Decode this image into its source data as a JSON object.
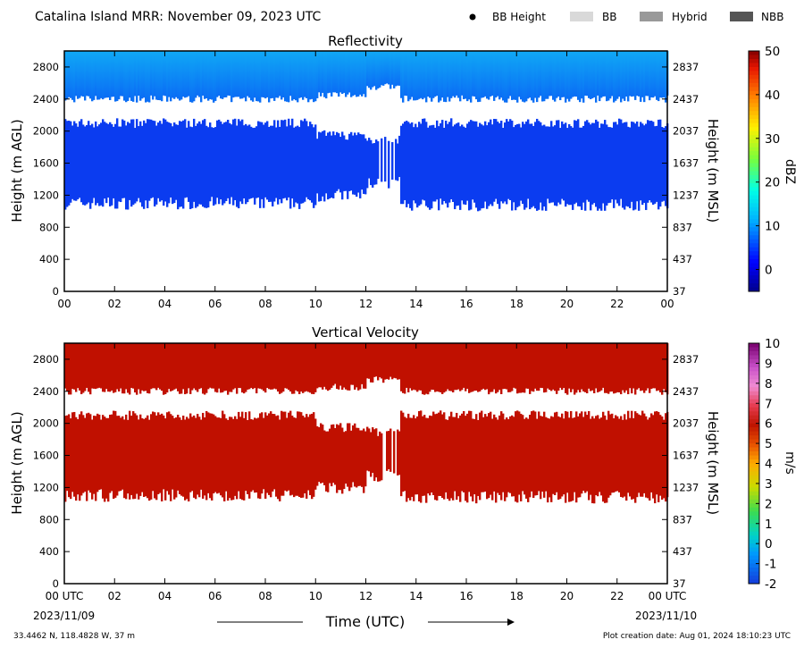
{
  "header": {
    "title": "Catalina Island MRR:  November 09, 2023 UTC",
    "legend": [
      {
        "label": "BB Height",
        "kind": "dot",
        "color": "#000000"
      },
      {
        "label": "BB",
        "kind": "box",
        "color": "#d9d9d9"
      },
      {
        "label": "Hybrid",
        "kind": "box",
        "color": "#999999"
      },
      {
        "label": "NBB",
        "kind": "box",
        "color": "#555555"
      }
    ]
  },
  "footer": {
    "coords": "33.4462 N, 118.4828 W, 37 m",
    "creation": "Plot creation date: Aug 01, 2024 18:10:23 UTC",
    "start_date": "2023/11/09",
    "end_date": "2023/11/10"
  },
  "colors": {
    "reflectivity_blue": "#0b3cf0",
    "reflectivity_top": "#10a8f5",
    "velocity_red": "#c01000"
  },
  "chart_data": [
    {
      "type": "heatmap",
      "title": "Reflectivity",
      "ylabel": "Height (m AGL)",
      "ylabel_right": "Height (m MSL)",
      "xticks": [
        "00",
        "02",
        "04",
        "06",
        "08",
        "10",
        "12",
        "14",
        "16",
        "18",
        "20",
        "22",
        "00"
      ],
      "yticks_left": [
        "0",
        "400",
        "800",
        "1200",
        "1600",
        "2000",
        "2400",
        "2800"
      ],
      "yticks_right": [
        "37",
        "437",
        "837",
        "1237",
        "1637",
        "2037",
        "2437",
        "2837"
      ],
      "ylim": [
        0,
        3000
      ],
      "xlim": [
        0,
        24
      ],
      "echo_layers_m_agl": [
        {
          "time_h": [
            0,
            10
          ],
          "bottom": 1100,
          "gap": [
            2100,
            2400
          ],
          "top": 3000
        },
        {
          "time_h": [
            10,
            12
          ],
          "bottom": 1200,
          "gap": [
            1950,
            2450
          ],
          "top": 3000
        },
        {
          "time_h": [
            12,
            13.3
          ],
          "bottom": 1350,
          "gap": [
            1900,
            2550
          ],
          "top": 3000
        },
        {
          "time_h": [
            13.3,
            24
          ],
          "bottom": 1080,
          "gap": [
            2100,
            2400
          ],
          "top": 3000
        }
      ],
      "colorbar": {
        "label": "dBZ",
        "ticks": [
          "0",
          "10",
          "20",
          "30",
          "40",
          "50"
        ],
        "range": [
          -5,
          50
        ]
      }
    },
    {
      "type": "heatmap",
      "title": "Vertical Velocity",
      "ylabel": "Height (m AGL)",
      "ylabel_right": "Height (m MSL)",
      "xlabel": "Time (UTC)",
      "xticks": [
        "00 UTC",
        "02",
        "04",
        "06",
        "08",
        "10",
        "12",
        "14",
        "16",
        "18",
        "20",
        "22",
        "00 UTC"
      ],
      "yticks_left": [
        "0",
        "400",
        "800",
        "1200",
        "1600",
        "2000",
        "2400",
        "2800"
      ],
      "yticks_right": [
        "37",
        "437",
        "837",
        "1237",
        "1637",
        "2037",
        "2437",
        "2837"
      ],
      "ylim": [
        0,
        3000
      ],
      "xlim": [
        0,
        24
      ],
      "echo_layers_m_agl": [
        {
          "time_h": [
            0,
            10
          ],
          "bottom": 1100,
          "gap": [
            2100,
            2400
          ],
          "top": 3000
        },
        {
          "time_h": [
            10,
            12
          ],
          "bottom": 1200,
          "gap": [
            1950,
            2450
          ],
          "top": 3000
        },
        {
          "time_h": [
            12,
            13.3
          ],
          "bottom": 1350,
          "gap": [
            1900,
            2550
          ],
          "top": 3000
        },
        {
          "time_h": [
            13.3,
            24
          ],
          "bottom": 1080,
          "gap": [
            2100,
            2400
          ],
          "top": 3000
        }
      ],
      "colorbar": {
        "label": "m/s",
        "ticks": [
          "-2",
          "-1",
          "0",
          "1",
          "2",
          "3",
          "4",
          "5",
          "6",
          "7",
          "8",
          "9",
          "10"
        ],
        "range": [
          -2,
          10
        ]
      }
    }
  ]
}
